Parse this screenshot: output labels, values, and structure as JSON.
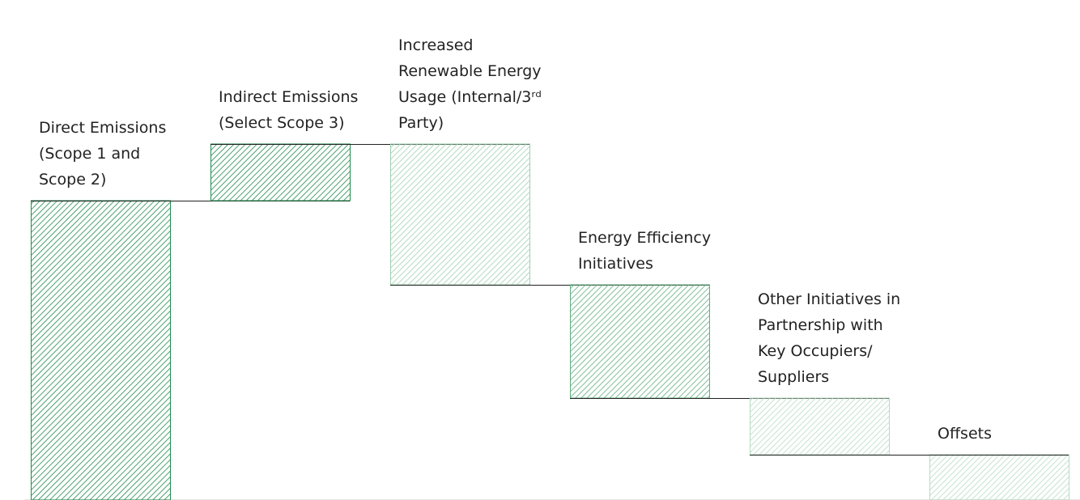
{
  "chart_data": {
    "type": "waterfall",
    "categories": [
      "Direct Emissions (Scope 1 and Scope 2)",
      "Indirect Emissions (Select Scope 3)",
      "Increased Renewable Energy Usage (Internal/3ʳᵈ Party)",
      "Energy Efficiency Initiatives",
      "Other Initiatives in Partnership with Key Occupiers/ Suppliers",
      "Offsets"
    ],
    "values": [
      370,
      70,
      -174,
      -140,
      -70,
      -56
    ],
    "colors": [
      "#1f8a4c",
      "#1f8a4c",
      "#9fd0b0",
      "#5fae7e",
      "#b5dcc2",
      "#b5dcc2"
    ],
    "ylim": [
      0,
      440
    ]
  }
}
